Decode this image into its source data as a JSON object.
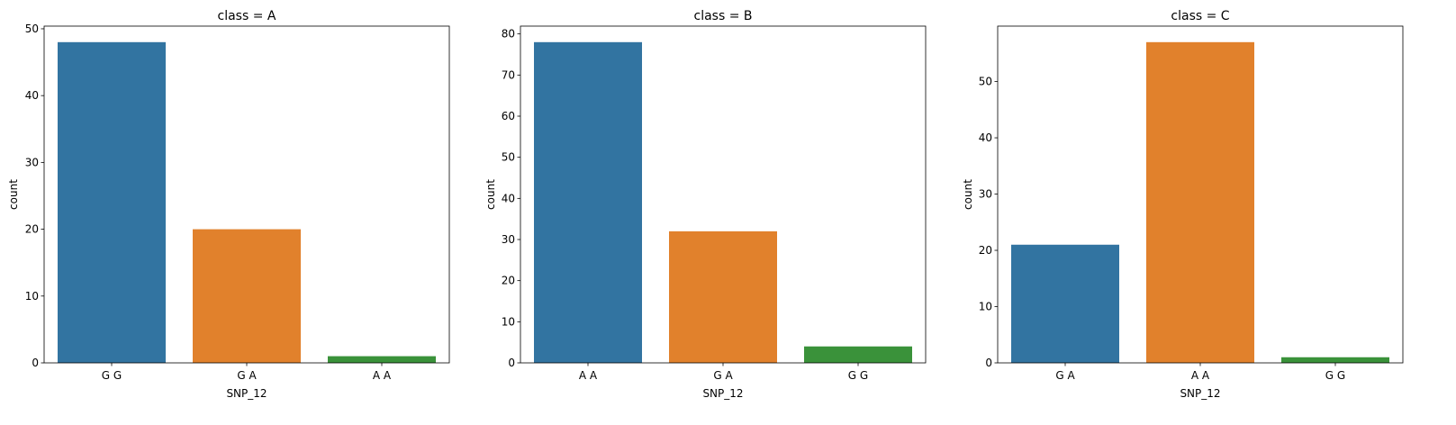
{
  "chart_data": [
    {
      "type": "bar",
      "title": "class = A",
      "xlabel": "SNP_12",
      "ylabel": "count",
      "categories": [
        "G G",
        "G A",
        "A A"
      ],
      "values": [
        48,
        20,
        1
      ],
      "bar_colors": [
        "#3274a1",
        "#e1812c",
        "#3a923a"
      ],
      "ylim": [
        0,
        50.4
      ],
      "yticks": [
        0,
        10,
        20,
        30,
        40,
        50
      ]
    },
    {
      "type": "bar",
      "title": "class = B",
      "xlabel": "SNP_12",
      "ylabel": "count",
      "categories": [
        "A A",
        "G A",
        "G G"
      ],
      "values": [
        78,
        32,
        4
      ],
      "bar_colors": [
        "#3274a1",
        "#e1812c",
        "#3a923a"
      ],
      "ylim": [
        0,
        81.9
      ],
      "yticks": [
        0,
        10,
        20,
        30,
        40,
        50,
        60,
        70,
        80
      ]
    },
    {
      "type": "bar",
      "title": "class = C",
      "xlabel": "SNP_12",
      "ylabel": "count",
      "categories": [
        "G A",
        "A A",
        "G G"
      ],
      "values": [
        21,
        57,
        1
      ],
      "bar_colors": [
        "#3274a1",
        "#e1812c",
        "#3a923a"
      ],
      "ylim": [
        0,
        59.85
      ],
      "yticks": [
        0,
        10,
        20,
        30,
        40,
        50
      ]
    }
  ]
}
